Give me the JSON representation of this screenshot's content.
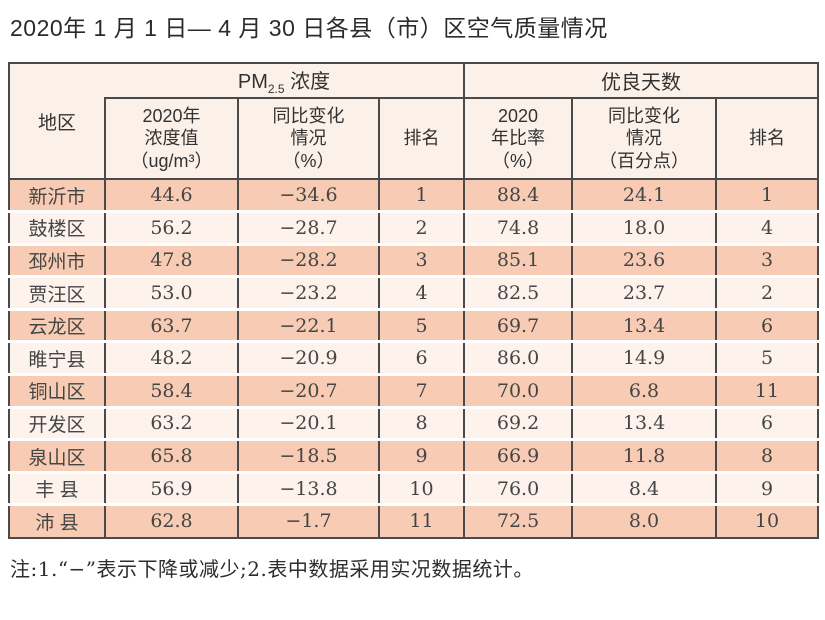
{
  "title": "2020年 1 月 1 日— 4 月 30 日各县（市）区空气质量情况",
  "table": {
    "corner": "地区",
    "group_pm": {
      "prefix": "PM",
      "sub": "2.5",
      "suffix": " 浓度"
    },
    "group_days": "优良天数",
    "subheaders": {
      "pm_value": [
        "2020年",
        "浓度值",
        "（ug/m³）"
      ],
      "pm_change": [
        "同比变化",
        "情况",
        "（%）"
      ],
      "pm_rank": [
        "排名"
      ],
      "days_rate": [
        "2020",
        "年比率",
        "（%）"
      ],
      "days_change": [
        "同比变化",
        "情况",
        "（百分点）"
      ],
      "days_rank": [
        "排名"
      ]
    },
    "rows": [
      {
        "region": "新沂市",
        "pm_value": "44.6",
        "pm_change": "−34.6",
        "pm_rank": "1",
        "days_rate": "88.4",
        "days_change": "24.1",
        "days_rank": "1"
      },
      {
        "region": "鼓楼区",
        "pm_value": "56.2",
        "pm_change": "−28.7",
        "pm_rank": "2",
        "days_rate": "74.8",
        "days_change": "18.0",
        "days_rank": "4"
      },
      {
        "region": "邳州市",
        "pm_value": "47.8",
        "pm_change": "−28.2",
        "pm_rank": "3",
        "days_rate": "85.1",
        "days_change": "23.6",
        "days_rank": "3"
      },
      {
        "region": "贾汪区",
        "pm_value": "53.0",
        "pm_change": "−23.2",
        "pm_rank": "4",
        "days_rate": "82.5",
        "days_change": "23.7",
        "days_rank": "2"
      },
      {
        "region": "云龙区",
        "pm_value": "63.7",
        "pm_change": "−22.1",
        "pm_rank": "5",
        "days_rate": "69.7",
        "days_change": "13.4",
        "days_rank": "6"
      },
      {
        "region": "睢宁县",
        "pm_value": "48.2",
        "pm_change": "−20.9",
        "pm_rank": "6",
        "days_rate": "86.0",
        "days_change": "14.9",
        "days_rank": "5"
      },
      {
        "region": "铜山区",
        "pm_value": "58.4",
        "pm_change": "−20.7",
        "pm_rank": "7",
        "days_rate": "70.0",
        "days_change": "6.8",
        "days_rank": "11"
      },
      {
        "region": "开发区",
        "pm_value": "63.2",
        "pm_change": "−20.1",
        "pm_rank": "8",
        "days_rate": "69.2",
        "days_change": "13.4",
        "days_rank": "6"
      },
      {
        "region": "泉山区",
        "pm_value": "65.8",
        "pm_change": "−18.5",
        "pm_rank": "9",
        "days_rate": "66.9",
        "days_change": "11.8",
        "days_rank": "8"
      },
      {
        "region": "丰 县",
        "pm_value": "56.9",
        "pm_change": "−13.8",
        "pm_rank": "10",
        "days_rate": "76.0",
        "days_change": "8.4",
        "days_rank": "9"
      },
      {
        "region": "沛 县",
        "pm_value": "62.8",
        "pm_change": "−1.7",
        "pm_rank": "11",
        "days_rate": "72.5",
        "days_change": "8.0",
        "days_rank": "10"
      }
    ]
  },
  "note": "注:1.“−”表示下降或减少;2.表中数据采用实况数据统计。",
  "colors": {
    "row_dark": "#f8ccb4",
    "row_light": "#fdf3ec",
    "header_bg": "#fcf1e9",
    "border": "#4a4a4a"
  }
}
